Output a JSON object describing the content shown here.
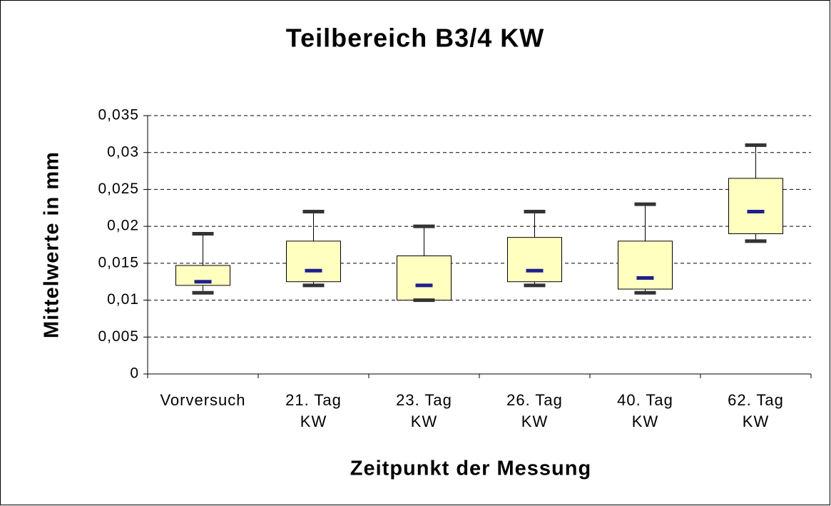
{
  "chart_data": {
    "type": "box",
    "title": "Teilbereich B3/4 KW",
    "x_label": "Zeitpunkt der Messung",
    "y_label": "Mittelwerte in mm",
    "categories": [
      "Vorversuch",
      "21. Tag\nKW",
      "23. Tag\nKW",
      "26. Tag\nKW",
      "40. Tag\nKW",
      "62. Tag\nKW"
    ],
    "boxes": [
      {
        "min": 0.011,
        "q1": 0.012,
        "median": 0.0125,
        "q3": 0.0147,
        "max": 0.019
      },
      {
        "min": 0.012,
        "q1": 0.0125,
        "median": 0.014,
        "q3": 0.018,
        "max": 0.022
      },
      {
        "min": 0.01,
        "q1": 0.01,
        "median": 0.012,
        "q3": 0.016,
        "max": 0.02
      },
      {
        "min": 0.012,
        "q1": 0.0125,
        "median": 0.014,
        "q3": 0.0185,
        "max": 0.022
      },
      {
        "min": 0.011,
        "q1": 0.0115,
        "median": 0.013,
        "q3": 0.018,
        "max": 0.023
      },
      {
        "min": 0.018,
        "q1": 0.019,
        "median": 0.022,
        "q3": 0.0265,
        "max": 0.031
      }
    ],
    "box_color": "#ffffc0",
    "median_color": "#1f1f8f",
    "cap_color": "#333333",
    "ylim": [
      0,
      0.035
    ],
    "yticks": [
      0,
      {
        "value": 0.005,
        "label": "0,005"
      },
      {
        "value": 0.01,
        "label": "0,01"
      },
      {
        "value": 0.015,
        "label": "0,015"
      },
      {
        "value": 0.02,
        "label": "0,02"
      },
      {
        "value": 0.025,
        "label": "0,025"
      },
      {
        "value": 0.03,
        "label": "0,03"
      },
      {
        "value": 0.035,
        "label": "0,035"
      }
    ],
    "grid": true
  }
}
